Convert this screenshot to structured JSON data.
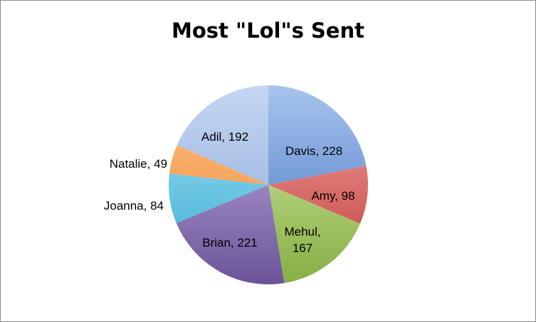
{
  "chart_data": {
    "type": "pie",
    "title": "Most \"Lol\"s Sent",
    "slices": [
      {
        "name": "Davis",
        "value": 228,
        "label": [
          "Davis, 228"
        ],
        "color_light": "#a8c4ee",
        "color_dark": "#3f6fbf"
      },
      {
        "name": "Amy",
        "value": 98,
        "label": [
          "Amy, 98"
        ],
        "color_light": "#f2a8a6",
        "color_dark": "#c03a37"
      },
      {
        "name": "Mehul",
        "value": 167,
        "label": [
          "Mehul,",
          "167"
        ],
        "color_light": "#d8f0a8",
        "color_dark": "#87ad44"
      },
      {
        "name": "Brian",
        "value": 221,
        "label": [
          "Brian, 221"
        ],
        "color_light": "#c8b6e6",
        "color_dark": "#6a5498"
      },
      {
        "name": "Joanna",
        "value": 84,
        "label": [
          "Joanna, 84"
        ],
        "color_light": "#a6e4f6",
        "color_dark": "#36aad0"
      },
      {
        "name": "Natalie",
        "value": 49,
        "label": [
          "Natalie, 49"
        ],
        "color_light": "#fcc08a",
        "color_dark": "#ef8a2c"
      },
      {
        "name": "Adil",
        "value": 192,
        "label": [
          "Adil, 192"
        ],
        "color_light": "#c4d6f2",
        "color_dark": "#8aa8d8"
      }
    ],
    "start_angle_deg": 0,
    "direction": "clockwise",
    "legend": "none"
  }
}
